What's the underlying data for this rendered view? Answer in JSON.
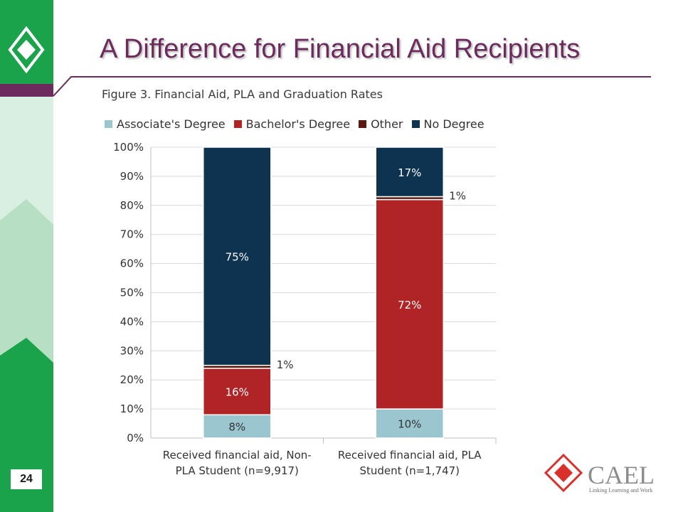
{
  "slide": {
    "title": "A Difference for Financial Aid Recipients",
    "page_number": "24"
  },
  "logo": {
    "name": "CAEL",
    "tagline": "Linking Learning and Work"
  },
  "colors": {
    "sidebar_green": "#1aa34a",
    "sidebar_light": "#d9efe1",
    "title_purple": "#6d2a5d",
    "associate": "#9ac6cf",
    "bachelor": "#b02426",
    "other": "#5a1a10",
    "no_degree": "#0d3350",
    "logo_red": "#d9302c",
    "logo_gray": "#8c8c8c"
  },
  "chart_data": {
    "type": "bar",
    "stacked": true,
    "title": "Figure 3. Financial Aid, PLA and Graduation Rates",
    "legend_position": "top",
    "categories": [
      "Received financial aid, Non-PLA Student (n=9,917)",
      "Received financial aid, PLA Student (n=1,747)"
    ],
    "category_lines": [
      [
        "Received financial aid, Non-",
        "PLA Student (n=9,917)"
      ],
      [
        "Received financial aid, PLA",
        "Student (n=1,747)"
      ]
    ],
    "series": [
      {
        "name": "Associate's Degree",
        "values": [
          8,
          10
        ],
        "labels": [
          "8%",
          "10%"
        ],
        "color": "#9ac6cf"
      },
      {
        "name": "Bachelor's Degree",
        "values": [
          16,
          72
        ],
        "labels": [
          "16%",
          "72%"
        ],
        "color": "#b02426"
      },
      {
        "name": "Other",
        "values": [
          1,
          1
        ],
        "labels": [
          "1%",
          "1%"
        ],
        "color": "#5a1a10"
      },
      {
        "name": "No Degree",
        "values": [
          75,
          17
        ],
        "labels": [
          "75%",
          "17%"
        ],
        "color": "#0d3350"
      }
    ],
    "ylim": [
      0,
      100
    ],
    "yticks": [
      "0%",
      "10%",
      "20%",
      "30%",
      "40%",
      "50%",
      "60%",
      "70%",
      "80%",
      "90%",
      "100%"
    ],
    "grid": true
  }
}
